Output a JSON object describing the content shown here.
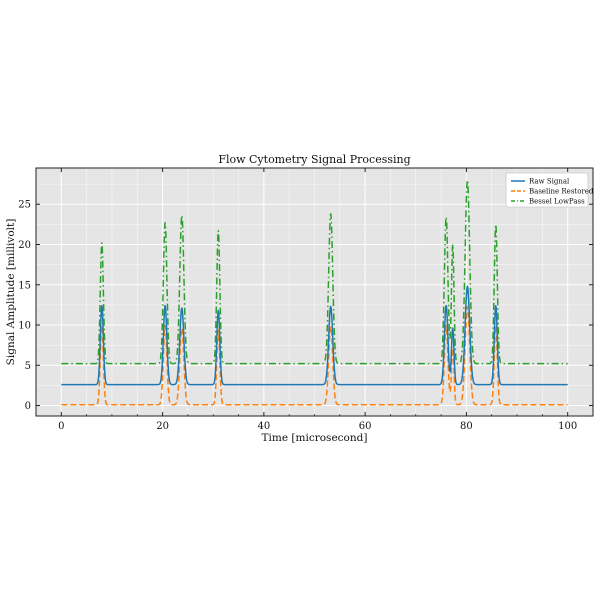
{
  "chart_data": {
    "type": "line",
    "title": "Flow Cytometry Signal Processing",
    "xlabel": "Time [microsecond]",
    "ylabel": "Signal Amplitude [millivolt]",
    "xlim": [
      -5,
      105
    ],
    "ylim": [
      -1.3,
      29.5
    ],
    "xticks": [
      0,
      20,
      40,
      60,
      80,
      100
    ],
    "yticks": [
      0,
      5,
      10,
      15,
      20,
      25
    ],
    "grid": true,
    "legend_position": "top-right",
    "background": "#e5e5e5",
    "x_range": [
      0,
      100
    ],
    "series": [
      {
        "name": "Raw Signal",
        "color": "#1f77b4",
        "style": "solid",
        "baseline": 2.6,
        "peaks": [
          {
            "x": 8.0,
            "amp": 9.8,
            "width": 0.3
          },
          {
            "x": 20.5,
            "amp": 9.8,
            "width": 0.35
          },
          {
            "x": 23.8,
            "amp": 9.5,
            "width": 0.4
          },
          {
            "x": 31.0,
            "amp": 9.2,
            "width": 0.3
          },
          {
            "x": 53.2,
            "amp": 9.7,
            "width": 0.4
          },
          {
            "x": 76.0,
            "amp": 9.8,
            "width": 0.35
          },
          {
            "x": 77.3,
            "amp": 7.0,
            "width": 0.25
          },
          {
            "x": 80.2,
            "amp": 12.2,
            "width": 0.45
          },
          {
            "x": 85.8,
            "amp": 9.8,
            "width": 0.3
          }
        ]
      },
      {
        "name": "Baseline Restored",
        "color": "#ff7f0e",
        "style": "dashed",
        "baseline": 0.1,
        "peaks": [
          {
            "x": 8.0,
            "amp": 9.8,
            "width": 0.3
          },
          {
            "x": 20.5,
            "amp": 9.8,
            "width": 0.35
          },
          {
            "x": 23.8,
            "amp": 9.5,
            "width": 0.4
          },
          {
            "x": 31.0,
            "amp": 9.2,
            "width": 0.3
          },
          {
            "x": 53.2,
            "amp": 9.7,
            "width": 0.4
          },
          {
            "x": 76.0,
            "amp": 9.8,
            "width": 0.35
          },
          {
            "x": 77.3,
            "amp": 7.0,
            "width": 0.25
          },
          {
            "x": 80.2,
            "amp": 12.2,
            "width": 0.45
          },
          {
            "x": 85.8,
            "amp": 9.8,
            "width": 0.3
          }
        ]
      },
      {
        "name": "Bessel LowPass",
        "color": "#2ca02c",
        "style": "dashdot",
        "baseline": 5.2,
        "peaks": [
          {
            "x": 8.0,
            "amp": 15.0,
            "width": 0.3
          },
          {
            "x": 20.5,
            "amp": 17.5,
            "width": 0.35
          },
          {
            "x": 23.8,
            "amp": 18.4,
            "width": 0.4
          },
          {
            "x": 31.0,
            "amp": 16.5,
            "width": 0.3
          },
          {
            "x": 53.2,
            "amp": 18.6,
            "width": 0.4
          },
          {
            "x": 76.0,
            "amp": 18.2,
            "width": 0.35
          },
          {
            "x": 77.3,
            "amp": 14.8,
            "width": 0.25
          },
          {
            "x": 80.2,
            "amp": 22.8,
            "width": 0.45
          },
          {
            "x": 85.8,
            "amp": 17.3,
            "width": 0.3
          }
        ]
      }
    ]
  }
}
